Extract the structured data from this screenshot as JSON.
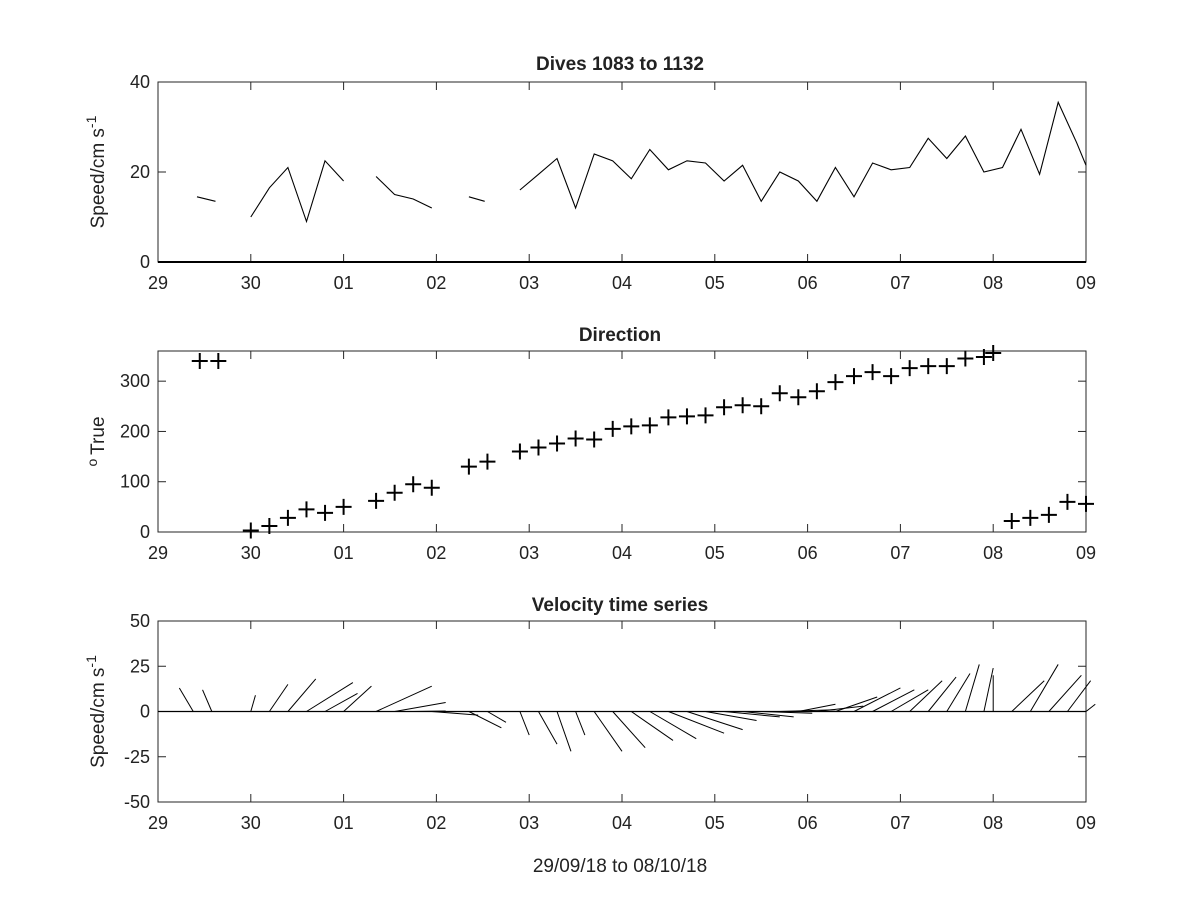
{
  "figure": {
    "xlabel": "29/09/18 to 08/10/18"
  },
  "chart_data": [
    {
      "type": "line",
      "title": "Dives 1083 to 1132",
      "xlabel": "",
      "ylabel": "Speed/cm s",
      "ylabel_sup": "-1",
      "xlim": [
        0,
        10
      ],
      "ylim": [
        0,
        40
      ],
      "xticklabels": [
        "29",
        "30",
        "01",
        "02",
        "03",
        "04",
        "05",
        "06",
        "07",
        "08",
        "09"
      ],
      "yticklabels": [
        "0",
        "20",
        "40"
      ],
      "segments": [
        [
          [
            0.42,
            14.5
          ],
          [
            0.62,
            13.5
          ]
        ],
        [
          [
            1.0,
            10
          ],
          [
            1.2,
            16.5
          ],
          [
            1.4,
            21
          ],
          [
            1.6,
            9
          ],
          [
            1.8,
            22.5
          ],
          [
            2.0,
            18
          ]
        ],
        [
          [
            2.35,
            19
          ],
          [
            2.55,
            15
          ],
          [
            2.75,
            14
          ],
          [
            2.95,
            12
          ]
        ],
        [
          [
            3.35,
            14.5
          ],
          [
            3.52,
            13.5
          ]
        ],
        [
          [
            3.9,
            16
          ],
          [
            4.1,
            19.5
          ],
          [
            4.3,
            23
          ],
          [
            4.5,
            12
          ],
          [
            4.7,
            24
          ],
          [
            4.9,
            22.5
          ],
          [
            5.1,
            18.5
          ],
          [
            5.3,
            25
          ],
          [
            5.5,
            20.5
          ],
          [
            5.7,
            22.5
          ],
          [
            5.9,
            22
          ],
          [
            6.1,
            18
          ],
          [
            6.3,
            21.5
          ],
          [
            6.5,
            13.5
          ],
          [
            6.7,
            20
          ],
          [
            6.9,
            18
          ],
          [
            7.1,
            13.5
          ],
          [
            7.3,
            21
          ],
          [
            7.5,
            14.5
          ],
          [
            7.7,
            22
          ],
          [
            7.9,
            20.5
          ],
          [
            8.1,
            21
          ],
          [
            8.3,
            27.5
          ],
          [
            8.5,
            23
          ],
          [
            8.7,
            28
          ],
          [
            8.9,
            20
          ],
          [
            9.1,
            21
          ],
          [
            9.3,
            29.5
          ],
          [
            9.5,
            19.5
          ],
          [
            9.7,
            35.5
          ],
          [
            9.9,
            26.5
          ],
          [
            10.0,
            21.5
          ]
        ]
      ]
    },
    {
      "type": "scatter",
      "title": "Direction",
      "xlabel": "",
      "ylabel": "True",
      "ylabel_sup": "o",
      "xlim": [
        0,
        10
      ],
      "ylim": [
        0,
        360
      ],
      "xticklabels": [
        "29",
        "30",
        "01",
        "02",
        "03",
        "04",
        "05",
        "06",
        "07",
        "08",
        "09"
      ],
      "yticklabels": [
        "0",
        "100",
        "200",
        "300"
      ],
      "marker": "+",
      "points": [
        [
          0.45,
          340
        ],
        [
          0.65,
          340
        ],
        [
          1.0,
          3
        ],
        [
          1.2,
          12
        ],
        [
          1.4,
          28
        ],
        [
          1.6,
          45
        ],
        [
          1.8,
          38
        ],
        [
          2.0,
          50
        ],
        [
          2.35,
          62
        ],
        [
          2.55,
          78
        ],
        [
          2.75,
          95
        ],
        [
          2.95,
          88
        ],
        [
          3.35,
          130
        ],
        [
          3.55,
          140
        ],
        [
          3.9,
          160
        ],
        [
          4.1,
          168
        ],
        [
          4.3,
          176
        ],
        [
          4.5,
          186
        ],
        [
          4.7,
          184
        ],
        [
          4.9,
          205
        ],
        [
          5.1,
          210
        ],
        [
          5.3,
          212
        ],
        [
          5.5,
          228
        ],
        [
          5.7,
          230
        ],
        [
          5.9,
          232
        ],
        [
          6.1,
          248
        ],
        [
          6.3,
          252
        ],
        [
          6.5,
          250
        ],
        [
          6.7,
          276
        ],
        [
          6.9,
          268
        ],
        [
          7.1,
          280
        ],
        [
          7.3,
          298
        ],
        [
          7.5,
          310
        ],
        [
          7.7,
          318
        ],
        [
          7.9,
          310
        ],
        [
          8.1,
          326
        ],
        [
          8.3,
          330
        ],
        [
          8.5,
          330
        ],
        [
          8.7,
          345
        ],
        [
          8.9,
          348
        ],
        [
          9.0,
          356
        ],
        [
          9.2,
          22
        ],
        [
          9.4,
          28
        ],
        [
          9.6,
          34
        ],
        [
          9.8,
          60
        ],
        [
          10.0,
          56
        ]
      ]
    },
    {
      "type": "line",
      "title": "Velocity time series",
      "xlabel": "29/09/18 to 08/10/18",
      "ylabel": "Speed/cm s",
      "ylabel_sup": "-1",
      "xlim": [
        0,
        10
      ],
      "ylim": [
        -50,
        50
      ],
      "xticklabels": [
        "29",
        "30",
        "01",
        "02",
        "03",
        "04",
        "05",
        "06",
        "07",
        "08",
        "09"
      ],
      "yticklabels": [
        "-50",
        "-25",
        "0",
        "25",
        "50"
      ],
      "zero_line": true,
      "stick_note": "each stick starts at (x, 0) and ends at (x + dx, dy) in axis units",
      "sticks": [
        [
          0.4,
          0.0,
          0.0
        ],
        [
          0.6,
          0.0,
          0.0
        ],
        [
          0.38,
          -0.15,
          13
        ],
        [
          0.58,
          -0.1,
          12
        ],
        [
          1.0,
          0.05,
          9
        ],
        [
          1.2,
          0.2,
          15
        ],
        [
          1.4,
          0.3,
          18
        ],
        [
          1.6,
          0.5,
          16
        ],
        [
          1.8,
          0.35,
          10
        ],
        [
          2.0,
          0.3,
          14
        ],
        [
          2.35,
          0.6,
          14
        ],
        [
          2.55,
          0.55,
          5
        ],
        [
          2.75,
          0.35,
          0.3
        ],
        [
          2.95,
          0.5,
          -2
        ],
        [
          3.35,
          0.35,
          -9
        ],
        [
          3.55,
          0.2,
          -6
        ],
        [
          3.9,
          0.1,
          -13
        ],
        [
          4.1,
          0.2,
          -18
        ],
        [
          4.3,
          0.15,
          -22
        ],
        [
          4.5,
          0.1,
          -13
        ],
        [
          4.7,
          0.3,
          -22
        ],
        [
          4.9,
          0.35,
          -20
        ],
        [
          5.1,
          0.45,
          -16
        ],
        [
          5.3,
          0.5,
          -15
        ],
        [
          5.5,
          0.6,
          -12
        ],
        [
          5.7,
          0.6,
          -10
        ],
        [
          5.9,
          0.55,
          -5
        ],
        [
          6.1,
          0.6,
          -3
        ],
        [
          6.3,
          0.55,
          -3
        ],
        [
          6.5,
          0.55,
          -1
        ],
        [
          6.7,
          0.6,
          1
        ],
        [
          6.9,
          0.4,
          4
        ],
        [
          7.1,
          0.5,
          3
        ],
        [
          7.3,
          0.45,
          8
        ],
        [
          7.5,
          0.5,
          13
        ],
        [
          7.7,
          0.45,
          12
        ],
        [
          7.9,
          0.4,
          12
        ],
        [
          8.1,
          0.35,
          17
        ],
        [
          8.3,
          0.3,
          19
        ],
        [
          8.5,
          0.25,
          21
        ],
        [
          8.7,
          0.15,
          26
        ],
        [
          8.9,
          0.1,
          24
        ],
        [
          9.0,
          0.0,
          20
        ],
        [
          9.2,
          0.35,
          17
        ],
        [
          9.4,
          0.3,
          26
        ],
        [
          9.6,
          0.35,
          20
        ],
        [
          9.8,
          0.25,
          17
        ],
        [
          10.0,
          0.1,
          4
        ]
      ]
    }
  ]
}
